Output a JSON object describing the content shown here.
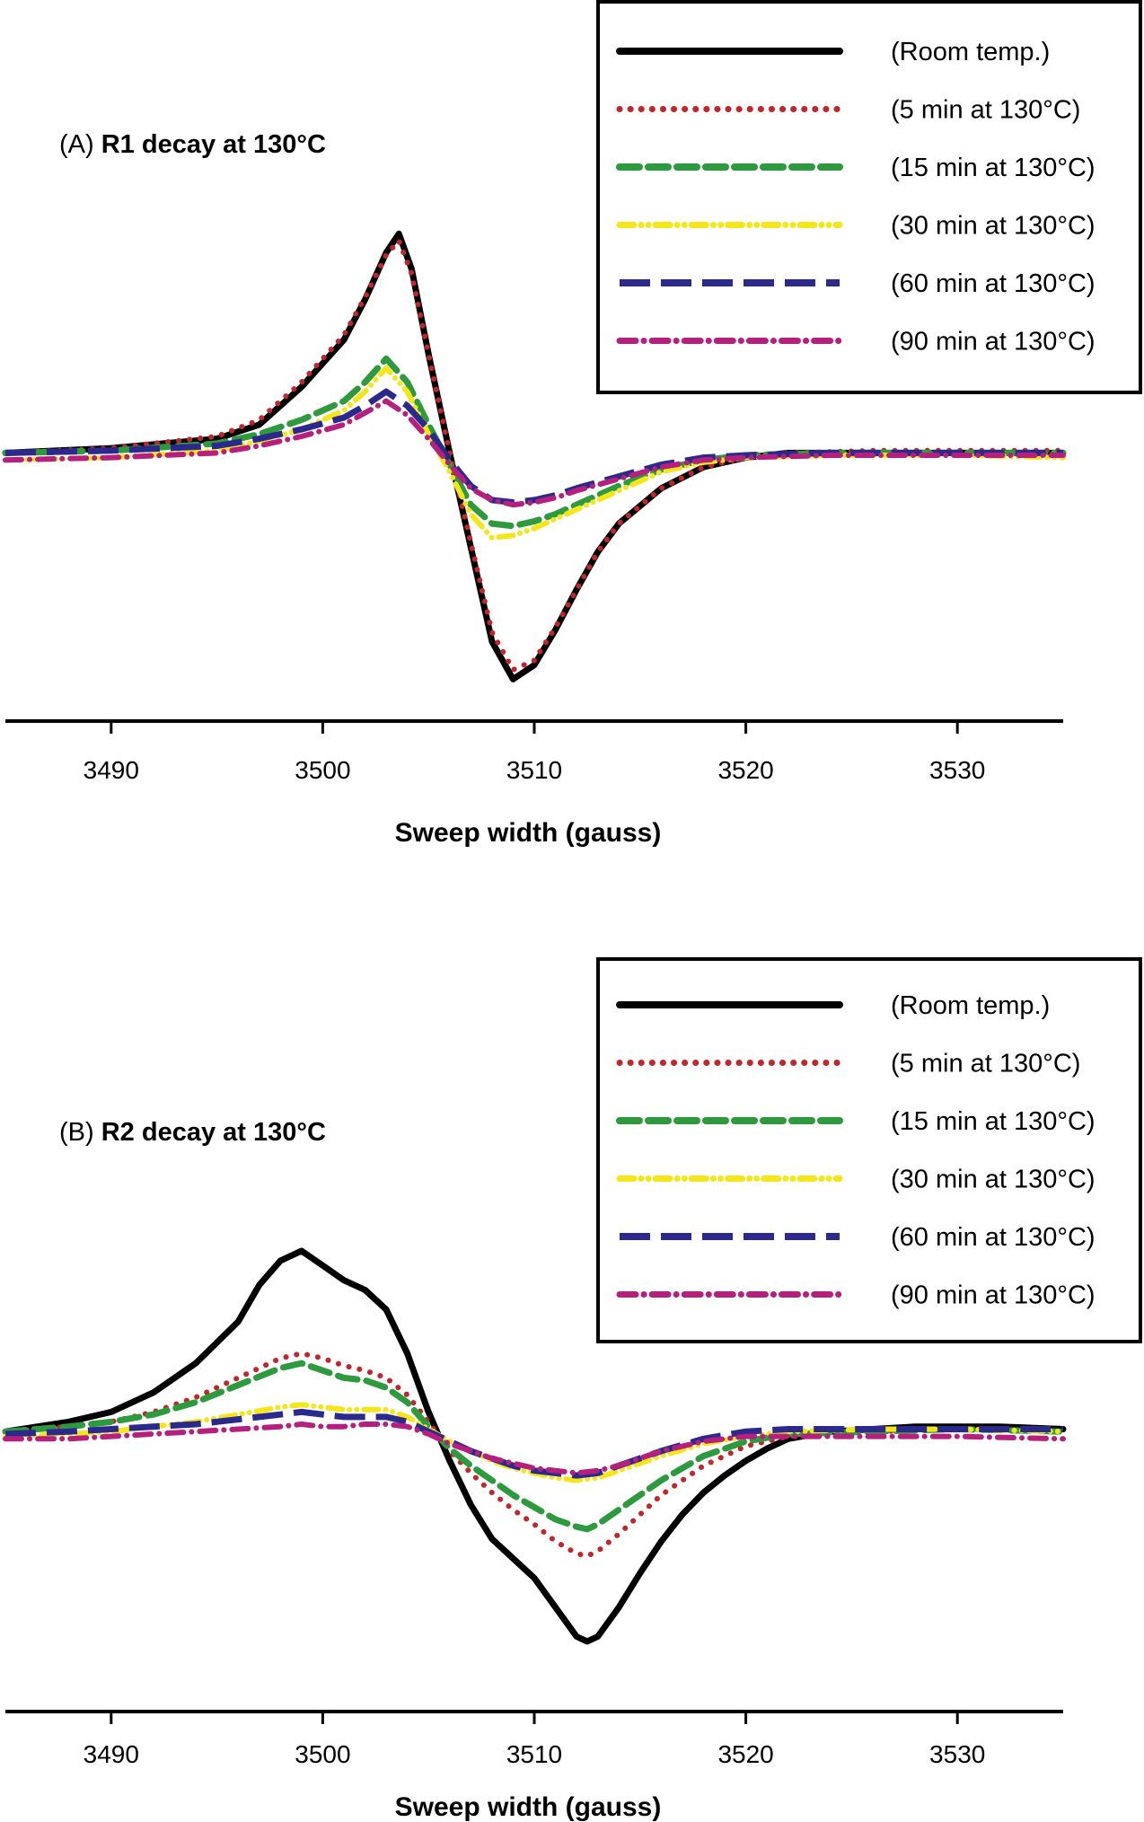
{
  "chart_data": [
    {
      "type": "line",
      "panel_label": "(A)",
      "title": "R1 decay at 130°C",
      "xlabel": "Sweep width (gauss)",
      "ylabel": "",
      "xlim": [
        3485,
        3535
      ],
      "ylim": [
        -1.05,
        1.35
      ],
      "xticks": [
        3490,
        3500,
        3510,
        3520,
        3530
      ],
      "legend_position": "top-right",
      "series": [
        {
          "name": "(Room temp.)",
          "color": "#000000",
          "style": "solid",
          "x": [
            3485,
            3490,
            3495,
            3497,
            3499,
            3501,
            3502,
            3503,
            3503.6,
            3504.2,
            3505,
            3506,
            3507,
            3508,
            3509,
            3510,
            3511,
            3512,
            3513,
            3514,
            3516,
            3518,
            3520,
            3522,
            3526,
            3530,
            3535
          ],
          "values": [
            0,
            0.02,
            0.06,
            0.12,
            0.28,
            0.48,
            0.65,
            0.85,
            0.93,
            0.78,
            0.42,
            0,
            -0.4,
            -0.8,
            -0.96,
            -0.9,
            -0.75,
            -0.58,
            -0.42,
            -0.3,
            -0.15,
            -0.06,
            -0.02,
            0,
            0,
            0,
            0
          ]
        },
        {
          "name": "(5 min at 130°C)",
          "color": "#c0262a",
          "style": "dotted",
          "x": [
            3485,
            3490,
            3495,
            3497,
            3499,
            3501,
            3502,
            3503,
            3503.6,
            3504.2,
            3505,
            3506,
            3507,
            3508,
            3509,
            3510,
            3511,
            3512,
            3513,
            3514,
            3516,
            3518,
            3520,
            3522,
            3526,
            3530,
            3535
          ],
          "values": [
            0,
            0.02,
            0.07,
            0.14,
            0.3,
            0.5,
            0.66,
            0.84,
            0.9,
            0.76,
            0.42,
            0,
            -0.38,
            -0.76,
            -0.92,
            -0.88,
            -0.74,
            -0.58,
            -0.42,
            -0.3,
            -0.15,
            -0.06,
            -0.02,
            0,
            0.01,
            0.01,
            0.01
          ]
        },
        {
          "name": "(15 min at 130°C)",
          "color": "#2e9a3e",
          "style": "dashed",
          "x": [
            3485,
            3490,
            3495,
            3497,
            3499,
            3501,
            3502,
            3503,
            3504,
            3505,
            3506,
            3507,
            3508,
            3509,
            3510,
            3511,
            3512,
            3514,
            3516,
            3518,
            3520,
            3524,
            3530,
            3535
          ],
          "values": [
            0,
            0.01,
            0.04,
            0.08,
            0.14,
            0.22,
            0.3,
            0.4,
            0.3,
            0.12,
            -0.05,
            -0.22,
            -0.3,
            -0.31,
            -0.29,
            -0.26,
            -0.22,
            -0.14,
            -0.07,
            -0.03,
            -0.01,
            0,
            0,
            0
          ]
        },
        {
          "name": "(30 min at 130°C)",
          "color": "#f5e61a",
          "style": "dashdotdot",
          "x": [
            3485,
            3490,
            3495,
            3497,
            3499,
            3501,
            3502,
            3503,
            3504,
            3505,
            3506,
            3507,
            3508,
            3509,
            3510,
            3511,
            3512,
            3514,
            3516,
            3518,
            3520,
            3524,
            3530,
            3535
          ],
          "values": [
            -0.03,
            -0.02,
            0.01,
            0.05,
            0.1,
            0.18,
            0.26,
            0.36,
            0.26,
            0.08,
            -0.08,
            -0.26,
            -0.36,
            -0.35,
            -0.32,
            -0.28,
            -0.24,
            -0.16,
            -0.08,
            -0.04,
            -0.02,
            -0.01,
            -0.01,
            -0.02
          ]
        },
        {
          "name": "(60 min at 130°C)",
          "color": "#2b2a8c",
          "style": "longdash",
          "x": [
            3485,
            3490,
            3495,
            3497,
            3499,
            3501,
            3502,
            3503,
            3504,
            3505,
            3506,
            3507,
            3508,
            3509,
            3510,
            3511,
            3512,
            3514,
            3516,
            3518,
            3520,
            3524,
            3530,
            3535
          ],
          "values": [
            0,
            0.01,
            0.03,
            0.06,
            0.1,
            0.15,
            0.2,
            0.26,
            0.2,
            0.1,
            -0.03,
            -0.14,
            -0.2,
            -0.21,
            -0.2,
            -0.18,
            -0.15,
            -0.1,
            -0.05,
            -0.02,
            -0.01,
            0,
            0,
            0
          ]
        },
        {
          "name": "(90 min at 130°C)",
          "color": "#b51f7e",
          "style": "dashdot",
          "x": [
            3485,
            3490,
            3495,
            3497,
            3499,
            3501,
            3502,
            3503,
            3504,
            3505,
            3506,
            3507,
            3508,
            3509,
            3510,
            3511,
            3512,
            3514,
            3516,
            3518,
            3520,
            3524,
            3530,
            3535
          ],
          "values": [
            -0.03,
            -0.02,
            0,
            0.03,
            0.07,
            0.12,
            0.17,
            0.22,
            0.16,
            0.06,
            -0.05,
            -0.15,
            -0.2,
            -0.22,
            -0.21,
            -0.19,
            -0.16,
            -0.11,
            -0.06,
            -0.03,
            -0.02,
            -0.01,
            -0.01,
            -0.01
          ]
        }
      ]
    },
    {
      "type": "line",
      "panel_label": "(B)",
      "title": "R2 decay at 130°C",
      "xlabel": "Sweep width (gauss)",
      "ylabel": "",
      "xlim": [
        3485,
        3535
      ],
      "ylim": [
        -1.0,
        1.2
      ],
      "xticks": [
        3490,
        3500,
        3510,
        3520,
        3530
      ],
      "legend_position": "top-right",
      "series": [
        {
          "name": "(Room temp.)",
          "color": "#000000",
          "style": "solid",
          "x": [
            3485,
            3488,
            3490,
            3492,
            3494,
            3496,
            3497,
            3498,
            3499,
            3500,
            3501,
            3502,
            3503,
            3504,
            3505,
            3506,
            3507,
            3508,
            3509,
            3510,
            3511,
            3512,
            3512.5,
            3513,
            3514,
            3515,
            3516,
            3517,
            3518,
            3519,
            3520,
            3521,
            3522,
            3524,
            3528,
            3532,
            3535
          ],
          "values": [
            0,
            0.04,
            0.08,
            0.16,
            0.28,
            0.45,
            0.6,
            0.7,
            0.74,
            0.68,
            0.62,
            0.58,
            0.5,
            0.32,
            0.08,
            -0.12,
            -0.3,
            -0.44,
            -0.52,
            -0.6,
            -0.72,
            -0.84,
            -0.86,
            -0.84,
            -0.72,
            -0.58,
            -0.45,
            -0.34,
            -0.25,
            -0.18,
            -0.12,
            -0.07,
            -0.03,
            0,
            0.02,
            0.02,
            0.01
          ]
        },
        {
          "name": "(5 min at 130°C)",
          "color": "#c0262a",
          "style": "dotted",
          "x": [
            3485,
            3488,
            3490,
            3492,
            3494,
            3496,
            3498,
            3499,
            3500,
            3501,
            3502,
            3503,
            3504,
            3505,
            3506,
            3507,
            3508,
            3509,
            3510,
            3511,
            3512,
            3512.5,
            3513,
            3514,
            3515,
            3516,
            3518,
            3520,
            3522,
            3526,
            3530,
            3535
          ],
          "values": [
            0,
            0.02,
            0.04,
            0.08,
            0.14,
            0.22,
            0.3,
            0.32,
            0.3,
            0.27,
            0.25,
            0.22,
            0.15,
            0.04,
            -0.08,
            -0.17,
            -0.25,
            -0.32,
            -0.38,
            -0.45,
            -0.5,
            -0.51,
            -0.49,
            -0.42,
            -0.34,
            -0.26,
            -0.14,
            -0.06,
            -0.02,
            0,
            0.01,
            0
          ]
        },
        {
          "name": "(15 min at 130°C)",
          "color": "#2e9a3e",
          "style": "dashed",
          "x": [
            3485,
            3488,
            3490,
            3492,
            3494,
            3496,
            3498,
            3499,
            3500,
            3501,
            3502,
            3503,
            3504,
            3505,
            3506,
            3507,
            3508,
            3509,
            3510,
            3511,
            3512,
            3512.5,
            3513,
            3514,
            3515,
            3516,
            3518,
            3520,
            3522,
            3526,
            3530,
            3535
          ],
          "values": [
            0,
            0.02,
            0.04,
            0.07,
            0.12,
            0.19,
            0.26,
            0.28,
            0.25,
            0.22,
            0.21,
            0.18,
            0.12,
            0.02,
            -0.07,
            -0.14,
            -0.2,
            -0.26,
            -0.31,
            -0.36,
            -0.39,
            -0.4,
            -0.38,
            -0.32,
            -0.26,
            -0.2,
            -0.1,
            -0.04,
            -0.01,
            0,
            0.01,
            0
          ]
        },
        {
          "name": "(30 min at 130°C)",
          "color": "#f5e61a",
          "style": "dashdotdot",
          "x": [
            3485,
            3488,
            3490,
            3492,
            3494,
            3496,
            3498,
            3499,
            3500,
            3501,
            3502,
            3503,
            3504,
            3505,
            3506,
            3507,
            3508,
            3509,
            3510,
            3511,
            3512,
            3513,
            3514,
            3516,
            3518,
            3520,
            3522,
            3526,
            3530,
            3535
          ],
          "values": [
            -0.02,
            -0.01,
            0,
            0.02,
            0.04,
            0.07,
            0.1,
            0.11,
            0.1,
            0.09,
            0.09,
            0.09,
            0.06,
            0.01,
            -0.04,
            -0.08,
            -0.12,
            -0.15,
            -0.17,
            -0.19,
            -0.2,
            -0.19,
            -0.16,
            -0.1,
            -0.05,
            -0.02,
            0,
            0.01,
            0.01,
            0
          ]
        },
        {
          "name": "(60 min at 130°C)",
          "color": "#2b2a8c",
          "style": "longdash",
          "x": [
            3485,
            3488,
            3490,
            3492,
            3494,
            3496,
            3498,
            3499,
            3500,
            3501,
            3502,
            3503,
            3504,
            3505,
            3506,
            3507,
            3508,
            3509,
            3510,
            3511,
            3512,
            3513,
            3514,
            3516,
            3518,
            3520,
            3522,
            3526,
            3530,
            3535
          ],
          "values": [
            -0.01,
            0,
            0.01,
            0.02,
            0.03,
            0.05,
            0.07,
            0.08,
            0.07,
            0.06,
            0.06,
            0.06,
            0.04,
            0,
            -0.04,
            -0.08,
            -0.11,
            -0.14,
            -0.16,
            -0.17,
            -0.18,
            -0.17,
            -0.14,
            -0.08,
            -0.03,
            0,
            0.01,
            0.01,
            0.01,
            0.01
          ]
        },
        {
          "name": "(90 min at 130°C)",
          "color": "#b51f7e",
          "style": "dashdot",
          "x": [
            3485,
            3488,
            3490,
            3492,
            3494,
            3496,
            3498,
            3499,
            3500,
            3501,
            3502,
            3503,
            3504,
            3505,
            3506,
            3507,
            3508,
            3509,
            3510,
            3511,
            3512,
            3513,
            3514,
            3516,
            3518,
            3520,
            3522,
            3526,
            3530,
            3535
          ],
          "values": [
            -0.03,
            -0.03,
            -0.02,
            -0.01,
            0,
            0.01,
            0.02,
            0.03,
            0.02,
            0.02,
            0.03,
            0.03,
            0.02,
            -0.01,
            -0.05,
            -0.08,
            -0.11,
            -0.13,
            -0.15,
            -0.16,
            -0.17,
            -0.16,
            -0.14,
            -0.08,
            -0.04,
            -0.02,
            -0.02,
            -0.02,
            -0.02,
            -0.03
          ]
        }
      ]
    }
  ]
}
